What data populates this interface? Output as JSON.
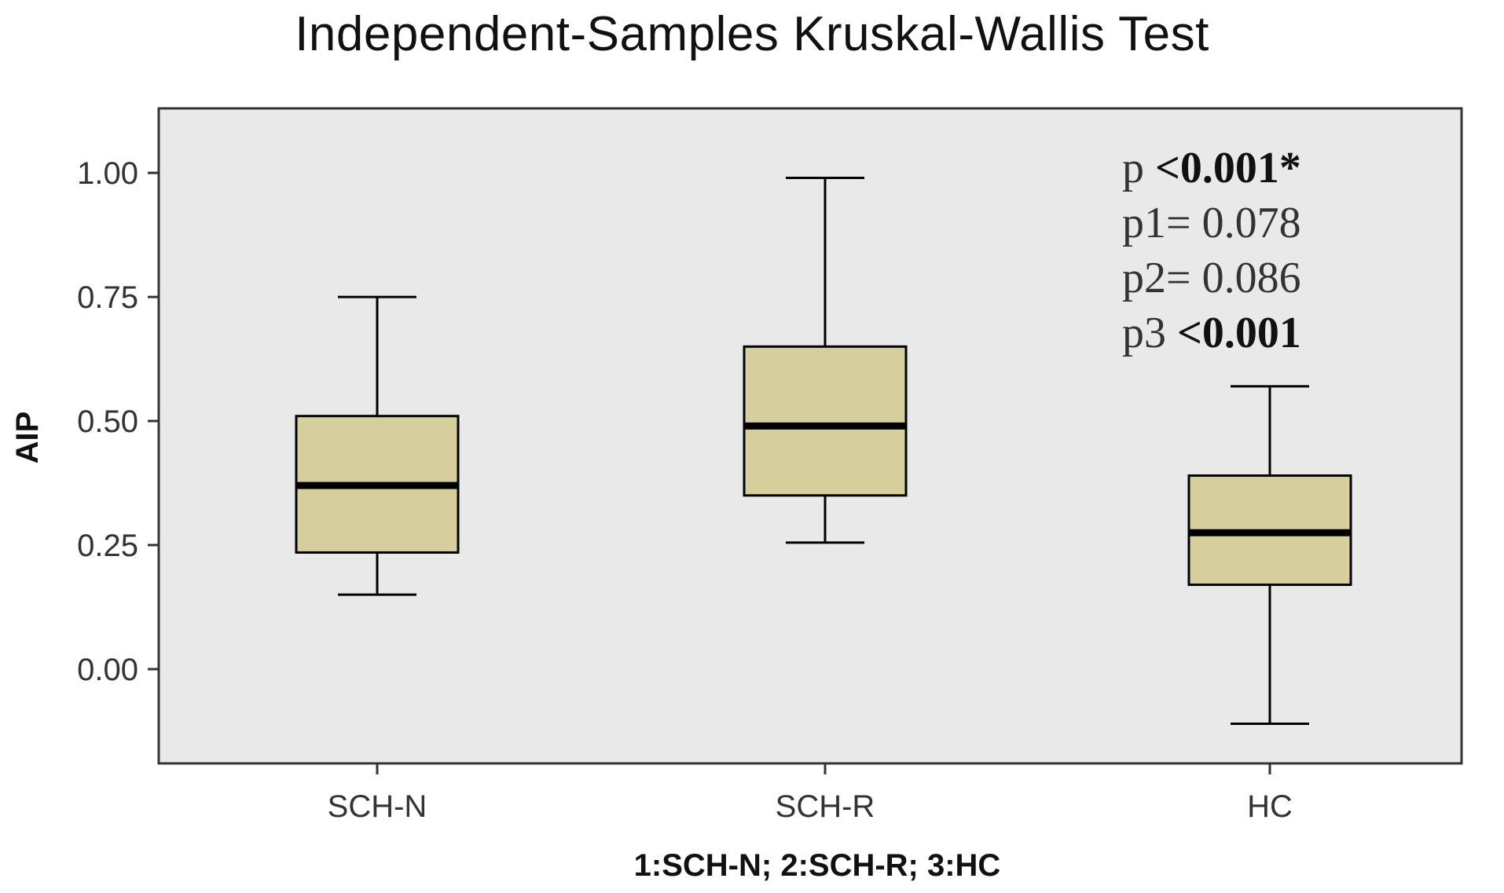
{
  "chart_data": {
    "type": "boxplot",
    "title": "Independent-Samples Kruskal-Wallis Test",
    "xlabel": "1:SCH-N; 2:SCH-R; 3:HC",
    "ylabel": "AIP",
    "ylim": [
      -0.19,
      1.13
    ],
    "yticks": [
      "0.00",
      "0.25",
      "0.50",
      "0.75",
      "1.00"
    ],
    "ytick_values": [
      0.0,
      0.25,
      0.5,
      0.75,
      1.0
    ],
    "categories": [
      "SCH-N",
      "SCH-R",
      "HC"
    ],
    "boxes": [
      {
        "category": "SCH-N",
        "min": 0.15,
        "q1": 0.235,
        "median": 0.37,
        "q3": 0.51,
        "max": 0.75
      },
      {
        "category": "SCH-R",
        "min": 0.255,
        "q1": 0.35,
        "median": 0.49,
        "q3": 0.65,
        "max": 0.99
      },
      {
        "category": "HC",
        "min": -0.11,
        "q1": 0.17,
        "median": 0.275,
        "q3": 0.39,
        "max": 0.57
      }
    ],
    "grid": false,
    "annotations": [
      {
        "plain": "p ",
        "bold": "<0.001",
        "suffix": "*"
      },
      {
        "plain": "p1= 0.078",
        "bold": "",
        "suffix": ""
      },
      {
        "plain": "p2= 0.086",
        "bold": "",
        "suffix": ""
      },
      {
        "plain": "p3 ",
        "bold": "<0.001",
        "suffix": ""
      }
    ],
    "colors": {
      "plot_background": "#e9e9e9",
      "box_fill": "#d6cf9d",
      "line": "#000000"
    }
  }
}
